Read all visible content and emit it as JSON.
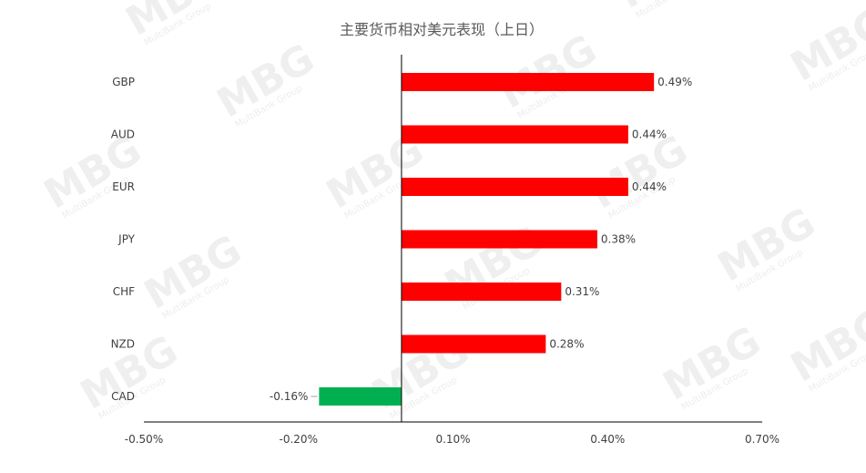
{
  "chart_data": {
    "type": "bar",
    "orientation": "horizontal",
    "title": "主要货币相对美元表现（上日）",
    "categories": [
      "GBP",
      "AUD",
      "EUR",
      "JPY",
      "CHF",
      "NZD",
      "CAD"
    ],
    "values": [
      0.49,
      0.44,
      0.44,
      0.38,
      0.31,
      0.28,
      -0.16
    ],
    "data_labels": [
      "0.49%",
      "0.44%",
      "0.44%",
      "0.38%",
      "0.31%",
      "0.28%",
      "-0.16%"
    ],
    "xlim": [
      -0.5,
      0.7
    ],
    "x_ticks": [
      -0.5,
      -0.2,
      0.1,
      0.4,
      0.7
    ],
    "x_tick_labels": [
      "-0.50%",
      "-0.20%",
      "0.10%",
      "0.40%",
      "0.70%"
    ],
    "grid": false,
    "legend": "none",
    "colors": {
      "positive": "#ff0000",
      "negative": "#00b050",
      "axis": "#000000",
      "title": "#595959",
      "text": "#404040",
      "watermark": "#efefef"
    }
  },
  "watermark": {
    "brand": "MBG",
    "tagline": "MultiBank Group"
  }
}
